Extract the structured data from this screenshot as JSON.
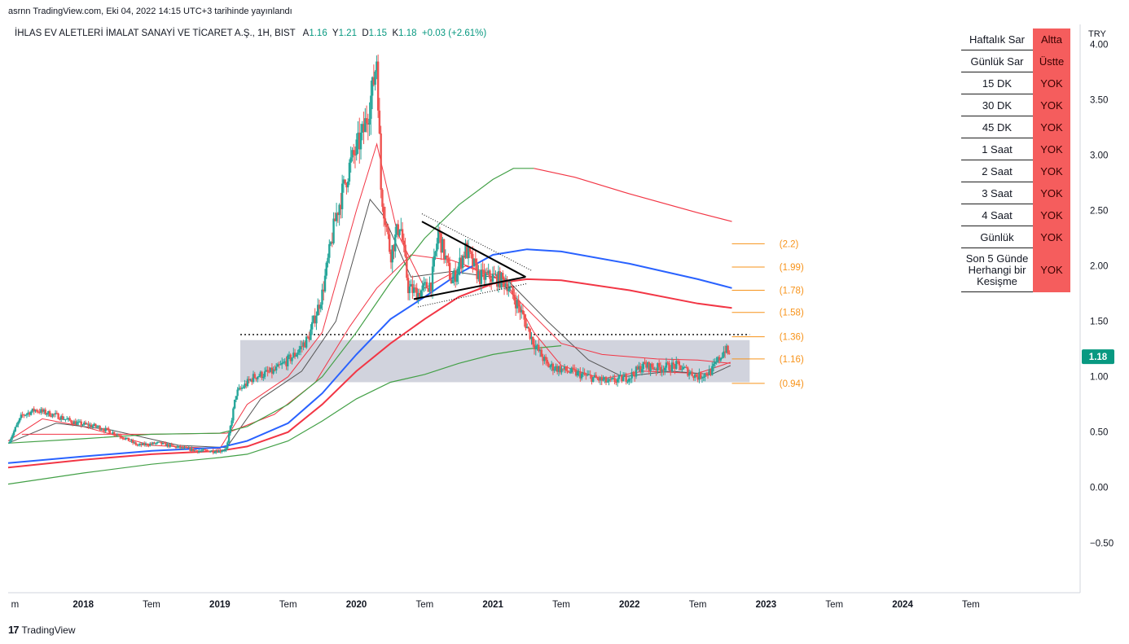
{
  "header": {
    "published": "asrnn TradingView.com, Eki 04, 2022 14:15 UTC+3 tarihinde yayınlandı"
  },
  "symbol": {
    "name": "İHLAS EV ALETLERİ İMALAT SANAYİ VE TİCARET A.Ş., 1H, BIST",
    "open_label": "A",
    "open": "1.16",
    "high_label": "Y",
    "high": "1.21",
    "low_label": "D",
    "low": "1.15",
    "close_label": "K",
    "close": "1.18",
    "change": "+0.03 (+2.61%)"
  },
  "signal_table": [
    {
      "name": "Haftalık Sar",
      "state": "Altta"
    },
    {
      "name": "Günlük Sar",
      "state": "Üstte"
    },
    {
      "name": "15 DK",
      "state": "YOK"
    },
    {
      "name": "30 DK",
      "state": "YOK"
    },
    {
      "name": "45 DK",
      "state": "YOK"
    },
    {
      "name": "1 Saat",
      "state": "YOK"
    },
    {
      "name": "2 Saat",
      "state": "YOK"
    },
    {
      "name": "3 Saat",
      "state": "YOK"
    },
    {
      "name": "4 Saat",
      "state": "YOK"
    },
    {
      "name": "Günlük",
      "state": "YOK"
    },
    {
      "name": "Son 5 Günde Herhangi bir Kesişme",
      "state": "YOK"
    }
  ],
  "colors": {
    "up": "#26a69a",
    "down": "#ef5350",
    "ma_blue": "#2962ff",
    "ma_red": "#f23645",
    "ma_green": "#43a047",
    "ma_dark": "#555555",
    "fib": "#f7931a",
    "price_badge": "#089981"
  },
  "footer": {
    "brand": "TradingView",
    "logo_glyph": "17"
  },
  "chart_data": {
    "type": "candlestick",
    "currency": "TRY",
    "y_range": [
      -0.95,
      4.0
    ],
    "y_ticks": [
      -0.5,
      0.0,
      0.5,
      1.0,
      1.5,
      2.0,
      2.5,
      3.0,
      3.5,
      4.0
    ],
    "y_tick_labels": [
      "−0.50",
      "0.00",
      "0.50",
      "1.00",
      "1.50",
      "2.00",
      "2.50",
      "3.00",
      "3.50",
      "4.00"
    ],
    "x_range": [
      2017.45,
      2025.3
    ],
    "x_ticks": [
      {
        "x": 2017.5,
        "label": "m"
      },
      {
        "x": 2018.0,
        "label": "2018"
      },
      {
        "x": 2018.5,
        "label": "Tem"
      },
      {
        "x": 2019.0,
        "label": "2019"
      },
      {
        "x": 2019.5,
        "label": "Tem"
      },
      {
        "x": 2020.0,
        "label": "2020"
      },
      {
        "x": 2020.5,
        "label": "Tem"
      },
      {
        "x": 2021.0,
        "label": "2021"
      },
      {
        "x": 2021.5,
        "label": "Tem"
      },
      {
        "x": 2022.0,
        "label": "2022"
      },
      {
        "x": 2022.5,
        "label": "Tem"
      },
      {
        "x": 2023.0,
        "label": "2023"
      },
      {
        "x": 2023.5,
        "label": "Tem"
      },
      {
        "x": 2024.0,
        "label": "2024"
      },
      {
        "x": 2024.5,
        "label": "Tem"
      }
    ],
    "last_price": "1.18",
    "price_path": [
      [
        2017.45,
        0.4
      ],
      [
        2017.55,
        0.65
      ],
      [
        2017.65,
        0.7
      ],
      [
        2017.8,
        0.65
      ],
      [
        2017.95,
        0.58
      ],
      [
        2018.1,
        0.55
      ],
      [
        2018.25,
        0.48
      ],
      [
        2018.4,
        0.38
      ],
      [
        2018.55,
        0.4
      ],
      [
        2018.7,
        0.36
      ],
      [
        2018.85,
        0.33
      ],
      [
        2019.0,
        0.33
      ],
      [
        2019.05,
        0.35
      ],
      [
        2019.12,
        0.85
      ],
      [
        2019.25,
        1.0
      ],
      [
        2019.4,
        1.05
      ],
      [
        2019.55,
        1.2
      ],
      [
        2019.65,
        1.35
      ],
      [
        2019.75,
        1.75
      ],
      [
        2019.85,
        2.45
      ],
      [
        2019.95,
        2.9
      ],
      [
        2020.05,
        3.2
      ],
      [
        2020.12,
        3.6
      ],
      [
        2020.15,
        3.9
      ],
      [
        2020.18,
        2.7
      ],
      [
        2020.25,
        2.1
      ],
      [
        2020.32,
        2.4
      ],
      [
        2020.38,
        1.8
      ],
      [
        2020.45,
        1.75
      ],
      [
        2020.55,
        1.85
      ],
      [
        2020.6,
        2.3
      ],
      [
        2020.7,
        1.85
      ],
      [
        2020.8,
        2.15
      ],
      [
        2020.9,
        1.9
      ],
      [
        2021.0,
        1.9
      ],
      [
        2021.1,
        1.85
      ],
      [
        2021.2,
        1.6
      ],
      [
        2021.3,
        1.3
      ],
      [
        2021.4,
        1.1
      ],
      [
        2021.55,
        1.05
      ],
      [
        2021.7,
        1.0
      ],
      [
        2021.85,
        0.95
      ],
      [
        2022.0,
        1.0
      ],
      [
        2022.1,
        1.1
      ],
      [
        2022.2,
        1.08
      ],
      [
        2022.35,
        1.1
      ],
      [
        2022.5,
        1.0
      ],
      [
        2022.6,
        1.05
      ],
      [
        2022.7,
        1.25
      ],
      [
        2022.74,
        1.18
      ]
    ],
    "moving_averages": [
      {
        "color": "ma_red",
        "width": 1.0,
        "points": [
          [
            2017.45,
            0.42
          ],
          [
            2017.7,
            0.62
          ],
          [
            2018.0,
            0.55
          ],
          [
            2018.5,
            0.38
          ],
          [
            2019.0,
            0.35
          ],
          [
            2019.2,
            0.75
          ],
          [
            2019.5,
            1.0
          ],
          [
            2019.75,
            1.4
          ],
          [
            2020.0,
            2.5
          ],
          [
            2020.15,
            3.1
          ],
          [
            2020.3,
            2.3
          ],
          [
            2020.5,
            1.8
          ],
          [
            2020.8,
            2.0
          ],
          [
            2021.1,
            1.85
          ],
          [
            2021.3,
            1.4
          ],
          [
            2021.5,
            1.1
          ],
          [
            2021.8,
            0.98
          ],
          [
            2022.1,
            1.05
          ],
          [
            2022.5,
            1.03
          ],
          [
            2022.74,
            1.13
          ]
        ]
      },
      {
        "color": "ma_dark",
        "width": 1.0,
        "points": [
          [
            2017.45,
            0.4
          ],
          [
            2017.8,
            0.58
          ],
          [
            2018.2,
            0.52
          ],
          [
            2018.7,
            0.38
          ],
          [
            2019.05,
            0.36
          ],
          [
            2019.3,
            0.8
          ],
          [
            2019.6,
            1.05
          ],
          [
            2019.85,
            1.5
          ],
          [
            2020.1,
            2.6
          ],
          [
            2020.2,
            2.45
          ],
          [
            2020.4,
            1.9
          ],
          [
            2020.7,
            1.95
          ],
          [
            2021.1,
            1.88
          ],
          [
            2021.4,
            1.5
          ],
          [
            2021.7,
            1.15
          ],
          [
            2021.95,
            1.0
          ],
          [
            2022.3,
            1.05
          ],
          [
            2022.6,
            1.02
          ],
          [
            2022.74,
            1.1
          ]
        ]
      },
      {
        "color": "ma_red",
        "width": 1.0,
        "points": [
          [
            2019.05,
            0.49
          ],
          [
            2019.4,
            0.66
          ],
          [
            2019.7,
            0.95
          ],
          [
            2019.95,
            1.45
          ],
          [
            2020.15,
            1.8
          ],
          [
            2020.4,
            2.1
          ],
          [
            2020.7,
            2.05
          ],
          [
            2021.0,
            1.92
          ],
          [
            2021.3,
            1.55
          ],
          [
            2021.5,
            1.3
          ],
          [
            2021.8,
            1.2
          ],
          [
            2022.2,
            1.16
          ],
          [
            2022.5,
            1.15
          ],
          [
            2022.74,
            1.12
          ]
        ]
      },
      {
        "color": "ma_red",
        "width": 1.0,
        "points": [
          [
            2017.55,
            0.48
          ],
          [
            2018.5,
            0.48
          ],
          [
            2019.0,
            0.49
          ],
          [
            2019.05,
            0.49
          ]
        ]
      },
      {
        "color": "ma_blue",
        "width": 2.0,
        "points": [
          [
            2017.45,
            0.22
          ],
          [
            2018.0,
            0.28
          ],
          [
            2018.5,
            0.33
          ],
          [
            2019.0,
            0.36
          ],
          [
            2019.2,
            0.42
          ],
          [
            2019.5,
            0.58
          ],
          [
            2019.75,
            0.85
          ],
          [
            2020.0,
            1.2
          ],
          [
            2020.25,
            1.52
          ],
          [
            2020.5,
            1.72
          ],
          [
            2020.75,
            1.93
          ],
          [
            2021.0,
            2.1
          ],
          [
            2021.25,
            2.15
          ],
          [
            2021.5,
            2.13
          ],
          [
            2022.0,
            2.02
          ],
          [
            2022.5,
            1.88
          ],
          [
            2022.75,
            1.8
          ]
        ]
      },
      {
        "color": "ma_red",
        "width": 2.0,
        "points": [
          [
            2017.45,
            0.18
          ],
          [
            2018.0,
            0.25
          ],
          [
            2018.5,
            0.3
          ],
          [
            2019.0,
            0.33
          ],
          [
            2019.2,
            0.37
          ],
          [
            2019.5,
            0.5
          ],
          [
            2019.75,
            0.75
          ],
          [
            2020.0,
            1.05
          ],
          [
            2020.25,
            1.3
          ],
          [
            2020.5,
            1.52
          ],
          [
            2020.75,
            1.72
          ],
          [
            2021.0,
            1.84
          ],
          [
            2021.25,
            1.88
          ],
          [
            2021.5,
            1.87
          ],
          [
            2022.0,
            1.78
          ],
          [
            2022.5,
            1.66
          ],
          [
            2022.75,
            1.62
          ]
        ]
      },
      {
        "color": "ma_green",
        "width": 1.2,
        "points": [
          [
            2017.45,
            0.03
          ],
          [
            2018.0,
            0.13
          ],
          [
            2018.5,
            0.21
          ],
          [
            2019.0,
            0.27
          ],
          [
            2019.2,
            0.3
          ],
          [
            2019.5,
            0.42
          ],
          [
            2019.75,
            0.6
          ],
          [
            2020.0,
            0.8
          ],
          [
            2020.25,
            0.95
          ],
          [
            2020.5,
            1.02
          ],
          [
            2020.75,
            1.12
          ],
          [
            2021.0,
            1.2
          ],
          [
            2021.25,
            1.25
          ],
          [
            2021.5,
            1.28
          ]
        ]
      },
      {
        "color": "ma_green",
        "width": 1.2,
        "points": [
          [
            2017.45,
            0.4
          ],
          [
            2018.0,
            0.44
          ],
          [
            2018.5,
            0.48
          ],
          [
            2019.0,
            0.49
          ],
          [
            2019.2,
            0.55
          ],
          [
            2019.5,
            0.75
          ],
          [
            2019.75,
            1.0
          ],
          [
            2020.0,
            1.4
          ],
          [
            2020.25,
            1.85
          ],
          [
            2020.5,
            2.25
          ],
          [
            2020.75,
            2.55
          ],
          [
            2021.0,
            2.78
          ],
          [
            2021.15,
            2.88
          ],
          [
            2021.3,
            2.88
          ]
        ]
      },
      {
        "color": "ma_red",
        "width": 1.2,
        "points": [
          [
            2021.3,
            2.88
          ],
          [
            2021.6,
            2.8
          ],
          [
            2022.0,
            2.65
          ],
          [
            2022.5,
            2.48
          ],
          [
            2022.75,
            2.4
          ]
        ]
      }
    ],
    "zone": {
      "x0": 2019.15,
      "x1": 2022.88,
      "y0": 0.95,
      "y1": 1.33,
      "color": "#b2b5c6"
    },
    "resistance_line": {
      "x0": 2019.15,
      "x1": 2022.88,
      "y": 1.38
    },
    "triangle": {
      "upper": [
        [
          2020.48,
          2.4
        ],
        [
          2021.24,
          1.9
        ]
      ],
      "lower": [
        [
          2020.42,
          1.7
        ],
        [
          2021.24,
          1.9
        ]
      ],
      "upper_dotted": [
        [
          2020.48,
          2.47
        ],
        [
          2021.28,
          1.96
        ]
      ],
      "lower_dotted": [
        [
          2020.45,
          1.63
        ],
        [
          2021.25,
          1.84
        ]
      ]
    },
    "fib_levels": [
      {
        "y": 2.2,
        "label": "(2.2)"
      },
      {
        "y": 1.99,
        "label": "(1.99)"
      },
      {
        "y": 1.78,
        "label": "(1.78)"
      },
      {
        "y": 1.58,
        "label": "(1.58)"
      },
      {
        "y": 1.36,
        "label": "(1.36)"
      },
      {
        "y": 1.16,
        "label": "(1.16)"
      },
      {
        "y": 0.94,
        "label": "(0.94)"
      }
    ],
    "fib_x": [
      2022.75,
      2022.99
    ]
  }
}
